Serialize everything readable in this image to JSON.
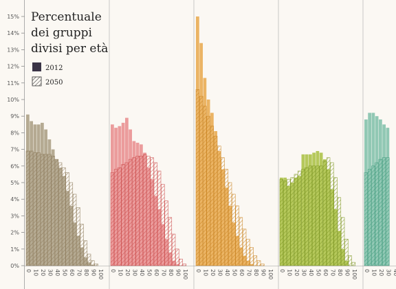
{
  "chart_data": {
    "type": "bar",
    "title": [
      "Percentuale",
      "dei gruppi",
      "divisi per età"
    ],
    "legend": {
      "placement": "top-left",
      "items": [
        {
          "label": "2012",
          "style": "solid"
        },
        {
          "label": "2050",
          "style": "hatched"
        }
      ]
    },
    "y_ticks": [
      "0%",
      "1%",
      "2%",
      "3%",
      "4%",
      "5%",
      "6%",
      "7%",
      "8%",
      "9%",
      "10%",
      "11%",
      "12%",
      "13%",
      "14%",
      "15%"
    ],
    "ylim": [
      0,
      15
    ],
    "x_ticks": [
      "0",
      "10",
      "20",
      "30",
      "40",
      "50",
      "60",
      "70",
      "80",
      "90",
      "100"
    ],
    "panels": [
      {
        "color": "#a89c80",
        "hatch": "#8c7a5a",
        "v2012": [
          9.1,
          8.7,
          8.5,
          8.5,
          8.6,
          8.2,
          7.6,
          7.0,
          6.4,
          5.9,
          5.4,
          4.5,
          3.6,
          2.6,
          1.8,
          1.1,
          0.5,
          0.2,
          0.05
        ],
        "v2050": [
          6.9,
          6.9,
          6.8,
          6.8,
          6.7,
          6.7,
          6.7,
          6.6,
          6.4,
          6.2,
          5.9,
          5.6,
          5.0,
          4.3,
          3.5,
          2.5,
          1.5,
          0.7,
          0.3,
          0.1
        ]
      },
      {
        "color": "#e88c8c",
        "hatch": "#cc4d4d",
        "v2012": [
          8.5,
          8.3,
          8.4,
          8.6,
          8.9,
          8.2,
          7.5,
          7.4,
          7.3,
          6.8,
          5.9,
          5.2,
          4.2,
          3.4,
          2.5,
          1.6,
          0.8,
          0.3,
          0.1
        ],
        "v2050": [
          5.6,
          5.8,
          5.9,
          6.1,
          6.2,
          6.4,
          6.5,
          6.6,
          6.6,
          6.7,
          6.6,
          6.5,
          6.2,
          5.7,
          4.9,
          3.9,
          2.9,
          1.9,
          1.0,
          0.4,
          0.1
        ]
      },
      {
        "color": "#e8a84a",
        "hatch": "#c9821f",
        "v2012": [
          15.0,
          13.4,
          11.3,
          10.0,
          9.2,
          8.1,
          6.9,
          5.8,
          4.7,
          3.6,
          2.6,
          1.8,
          1.1,
          0.6,
          0.3,
          0.1
        ],
        "v2050": [
          10.6,
          10.2,
          9.6,
          9.0,
          8.4,
          7.8,
          7.2,
          6.5,
          5.8,
          5.0,
          4.3,
          3.6,
          2.9,
          2.2,
          1.6,
          1.1,
          0.6,
          0.3,
          0.1
        ]
      },
      {
        "color": "#a8c040",
        "hatch": "#7c9620",
        "v2012": [
          5.3,
          5.3,
          4.8,
          5.0,
          5.3,
          5.4,
          6.7,
          6.7,
          6.7,
          6.8,
          6.9,
          6.8,
          6.4,
          5.8,
          4.6,
          3.4,
          2.1,
          1.0,
          0.3
        ],
        "v2050": [
          5.2,
          5.1,
          5.2,
          5.3,
          5.5,
          5.7,
          5.8,
          5.9,
          6.0,
          6.0,
          6.0,
          6.0,
          6.3,
          6.5,
          6.2,
          5.3,
          4.1,
          2.9,
          1.6,
          0.6,
          0.2
        ]
      },
      {
        "color": "#7ebfa8",
        "hatch": "#3f9a7c",
        "v2012": [
          8.8,
          9.2,
          9.2,
          9.0,
          8.8,
          8.5,
          8.3
        ],
        "v2050": [
          5.6,
          5.8,
          6.0,
          6.2,
          6.4,
          6.5,
          6.5
        ]
      }
    ]
  }
}
